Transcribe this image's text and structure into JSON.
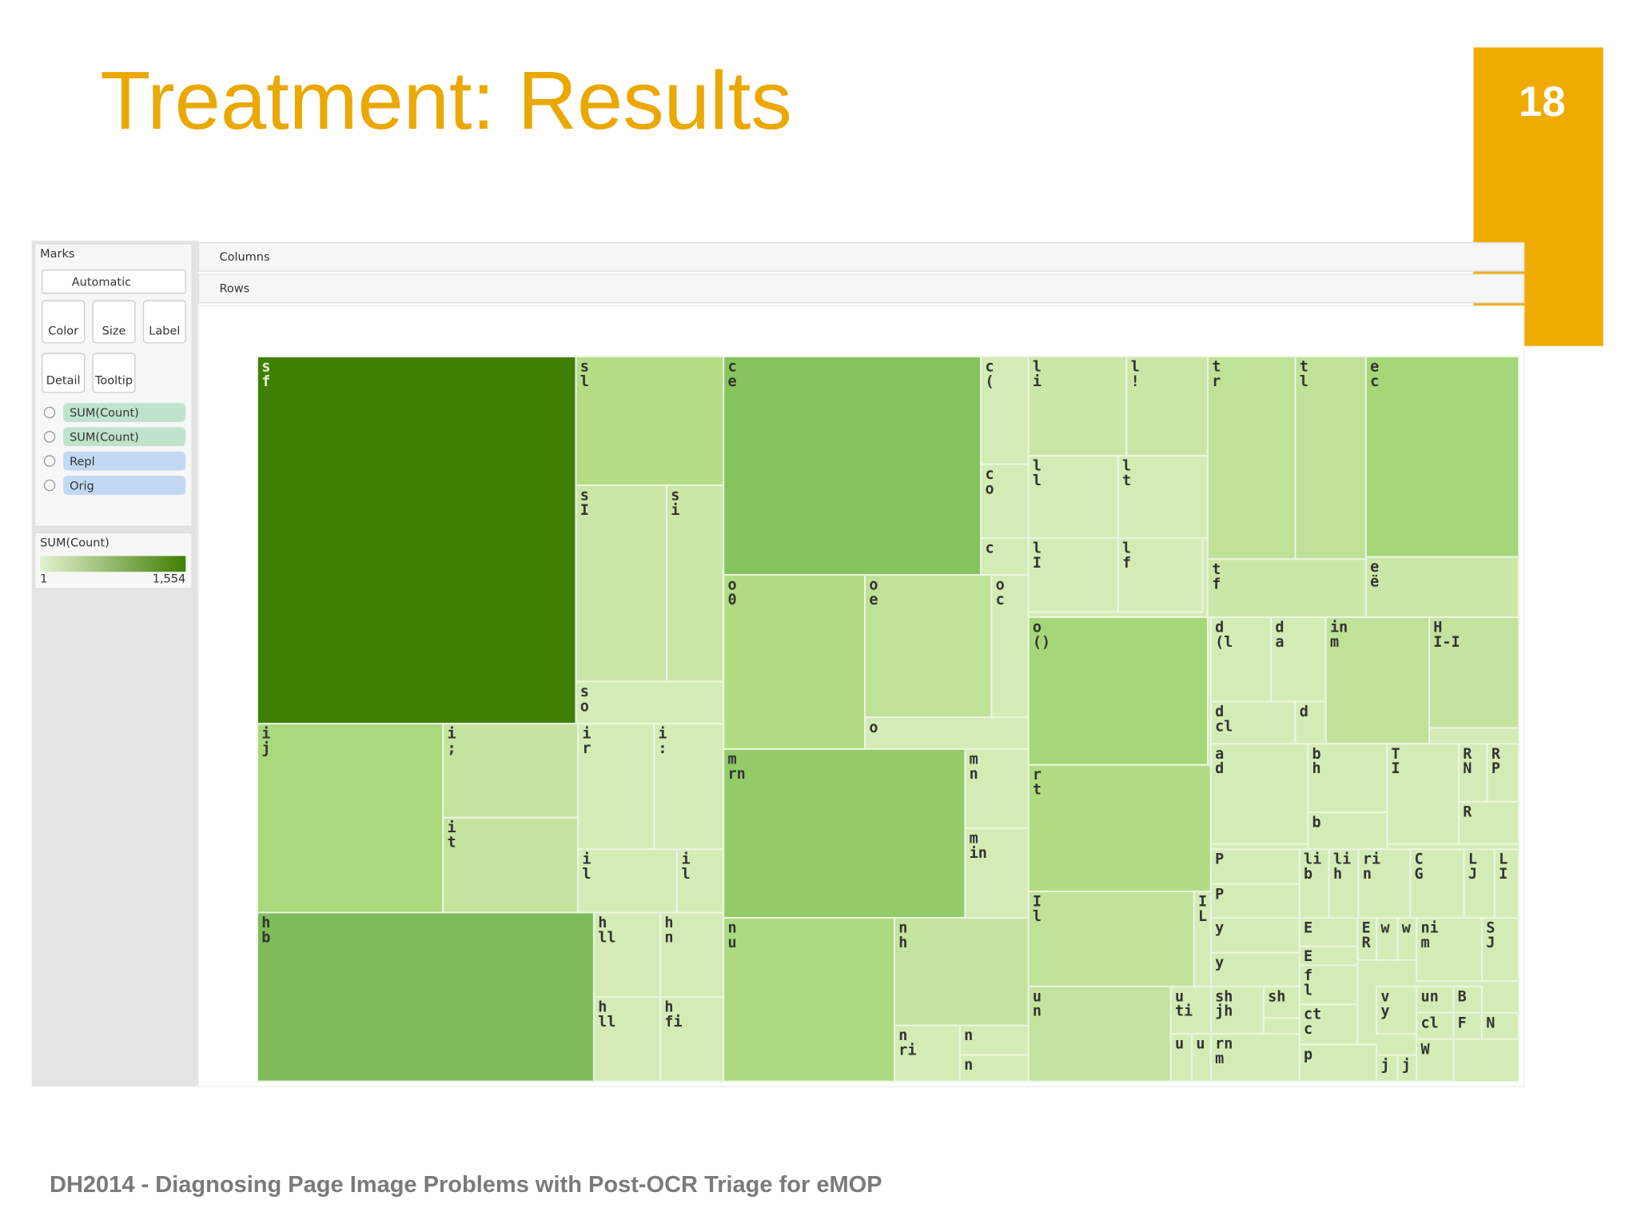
{
  "slide": {
    "title": "Treatment: Results",
    "number": "18",
    "footer": "DH2014 - Diagnosing Page Image Problems with Post-OCR Triage for eMOP"
  },
  "marks_panel": {
    "header": "Marks",
    "mark_type": "Automatic",
    "buttons": [
      "Color",
      "Size",
      "Label",
      "Detail",
      "Tooltip"
    ],
    "pills": [
      "SUM(Count)",
      "SUM(Count)",
      "Repl",
      "Orig"
    ],
    "legend": {
      "title": "SUM(Count)",
      "min": "1",
      "max": "1,554"
    }
  },
  "shelves": {
    "columns": "Columns",
    "rows": "Rows"
  },
  "treemap": {
    "cells": [
      {
        "lines": [
          "s",
          "f"
        ]
      },
      {
        "lines": [
          "s",
          "l"
        ]
      },
      {
        "lines": [
          "s",
          "I"
        ]
      },
      {
        "lines": [
          "s",
          "i"
        ]
      },
      {
        "lines": [
          "s",
          "o"
        ]
      },
      {
        "lines": [
          "c",
          "e"
        ]
      },
      {
        "lines": [
          "c",
          "("
        ]
      },
      {
        "lines": [
          "c",
          "o"
        ]
      },
      {
        "lines": [
          "c"
        ]
      },
      {
        "lines": [
          "o",
          "0"
        ]
      },
      {
        "lines": [
          "o",
          "e"
        ]
      },
      {
        "lines": [
          "o",
          "c"
        ]
      },
      {
        "lines": [
          "o"
        ]
      },
      {
        "lines": [
          "l",
          "i"
        ]
      },
      {
        "lines": [
          "l",
          "!"
        ]
      },
      {
        "lines": [
          "l",
          "l"
        ]
      },
      {
        "lines": [
          "l",
          "t"
        ]
      },
      {
        "lines": [
          "l",
          "I"
        ]
      },
      {
        "lines": [
          "l",
          "f"
        ]
      },
      {
        "lines": [
          "t",
          "r"
        ]
      },
      {
        "lines": [
          "t",
          "l"
        ]
      },
      {
        "lines": [
          "e",
          "c"
        ]
      },
      {
        "lines": [
          "t",
          "f"
        ]
      },
      {
        "lines": [
          "e",
          "ë"
        ]
      },
      {
        "lines": [
          "o",
          "()"
        ]
      },
      {
        "lines": [
          "r",
          "t"
        ]
      },
      {
        "lines": [
          "I",
          "l"
        ]
      },
      {
        "lines": [
          "I",
          "L"
        ]
      },
      {
        "lines": [
          "u",
          "n"
        ]
      },
      {
        "lines": [
          "u",
          "ti"
        ]
      },
      {
        "lines": [
          "u"
        ]
      },
      {
        "lines": [
          "u"
        ]
      },
      {
        "lines": [
          "i",
          "j"
        ]
      },
      {
        "lines": [
          "i",
          ";"
        ]
      },
      {
        "lines": [
          "i",
          "t"
        ]
      },
      {
        "lines": [
          "i",
          "r"
        ]
      },
      {
        "lines": [
          "i",
          ":"
        ]
      },
      {
        "lines": [
          "i",
          "l"
        ]
      },
      {
        "lines": [
          "i",
          "l"
        ]
      },
      {
        "lines": [
          "h",
          "b"
        ]
      },
      {
        "lines": [
          "h",
          "ll"
        ]
      },
      {
        "lines": [
          "h",
          "n"
        ]
      },
      {
        "lines": [
          "h",
          "ll"
        ]
      },
      {
        "lines": [
          "h",
          "fi"
        ]
      },
      {
        "lines": [
          "m",
          "rn"
        ]
      },
      {
        "lines": [
          "m",
          "n"
        ]
      },
      {
        "lines": [
          "m",
          "in"
        ]
      },
      {
        "lines": [
          "n",
          "u"
        ]
      },
      {
        "lines": [
          "n",
          "h"
        ]
      },
      {
        "lines": [
          "n",
          "ri"
        ]
      },
      {
        "lines": [
          "n"
        ]
      },
      {
        "lines": [
          "n"
        ]
      },
      {
        "lines": [
          "d",
          "(l"
        ]
      },
      {
        "lines": [
          "d",
          "a"
        ]
      },
      {
        "lines": [
          "in",
          "m"
        ]
      },
      {
        "lines": [
          "H",
          "I-I"
        ]
      },
      {
        "lines": [
          "d",
          "cl"
        ]
      },
      {
        "lines": [
          "d"
        ]
      },
      {
        "lines": [
          "a",
          "d"
        ]
      },
      {
        "lines": [
          "b",
          "h"
        ]
      },
      {
        "lines": [
          "T",
          "I"
        ]
      },
      {
        "lines": [
          "R",
          "N"
        ]
      },
      {
        "lines": [
          "R",
          "P"
        ]
      },
      {
        "lines": [
          "b"
        ]
      },
      {
        "lines": [
          "R"
        ]
      },
      {
        "lines": [
          "P"
        ]
      },
      {
        "lines": [
          "li",
          "b"
        ]
      },
      {
        "lines": [
          "li",
          "h"
        ]
      },
      {
        "lines": [
          "ri",
          "n"
        ]
      },
      {
        "lines": [
          "C",
          "G"
        ]
      },
      {
        "lines": [
          "L",
          "J"
        ]
      },
      {
        "lines": [
          "L",
          "I"
        ]
      },
      {
        "lines": [
          "P"
        ]
      },
      {
        "lines": [
          "y"
        ]
      },
      {
        "lines": [
          "y"
        ]
      },
      {
        "lines": [
          "E"
        ]
      },
      {
        "lines": [
          "E",
          "R"
        ]
      },
      {
        "lines": [
          "w"
        ]
      },
      {
        "lines": [
          "w"
        ]
      },
      {
        "lines": [
          "ni",
          "m"
        ]
      },
      {
        "lines": [
          "S",
          "J"
        ]
      },
      {
        "lines": [
          "E"
        ]
      },
      {
        "lines": [
          "f",
          "l"
        ]
      },
      {
        "lines": [
          "sh",
          "jh"
        ]
      },
      {
        "lines": [
          "sh"
        ]
      },
      {
        "lines": [
          "v",
          "y"
        ]
      },
      {
        "lines": [
          "un"
        ]
      },
      {
        "lines": [
          "B"
        ]
      },
      {
        "lines": [
          "ct",
          "c"
        ]
      },
      {
        "lines": [
          "cl"
        ]
      },
      {
        "lines": [
          "F"
        ]
      },
      {
        "lines": [
          "N"
        ]
      },
      {
        "lines": [
          "rn",
          "m"
        ]
      },
      {
        "lines": [
          "W"
        ]
      },
      {
        "lines": [
          "p"
        ]
      },
      {
        "lines": [
          "j"
        ]
      },
      {
        "lines": [
          "j"
        ]
      }
    ]
  }
}
